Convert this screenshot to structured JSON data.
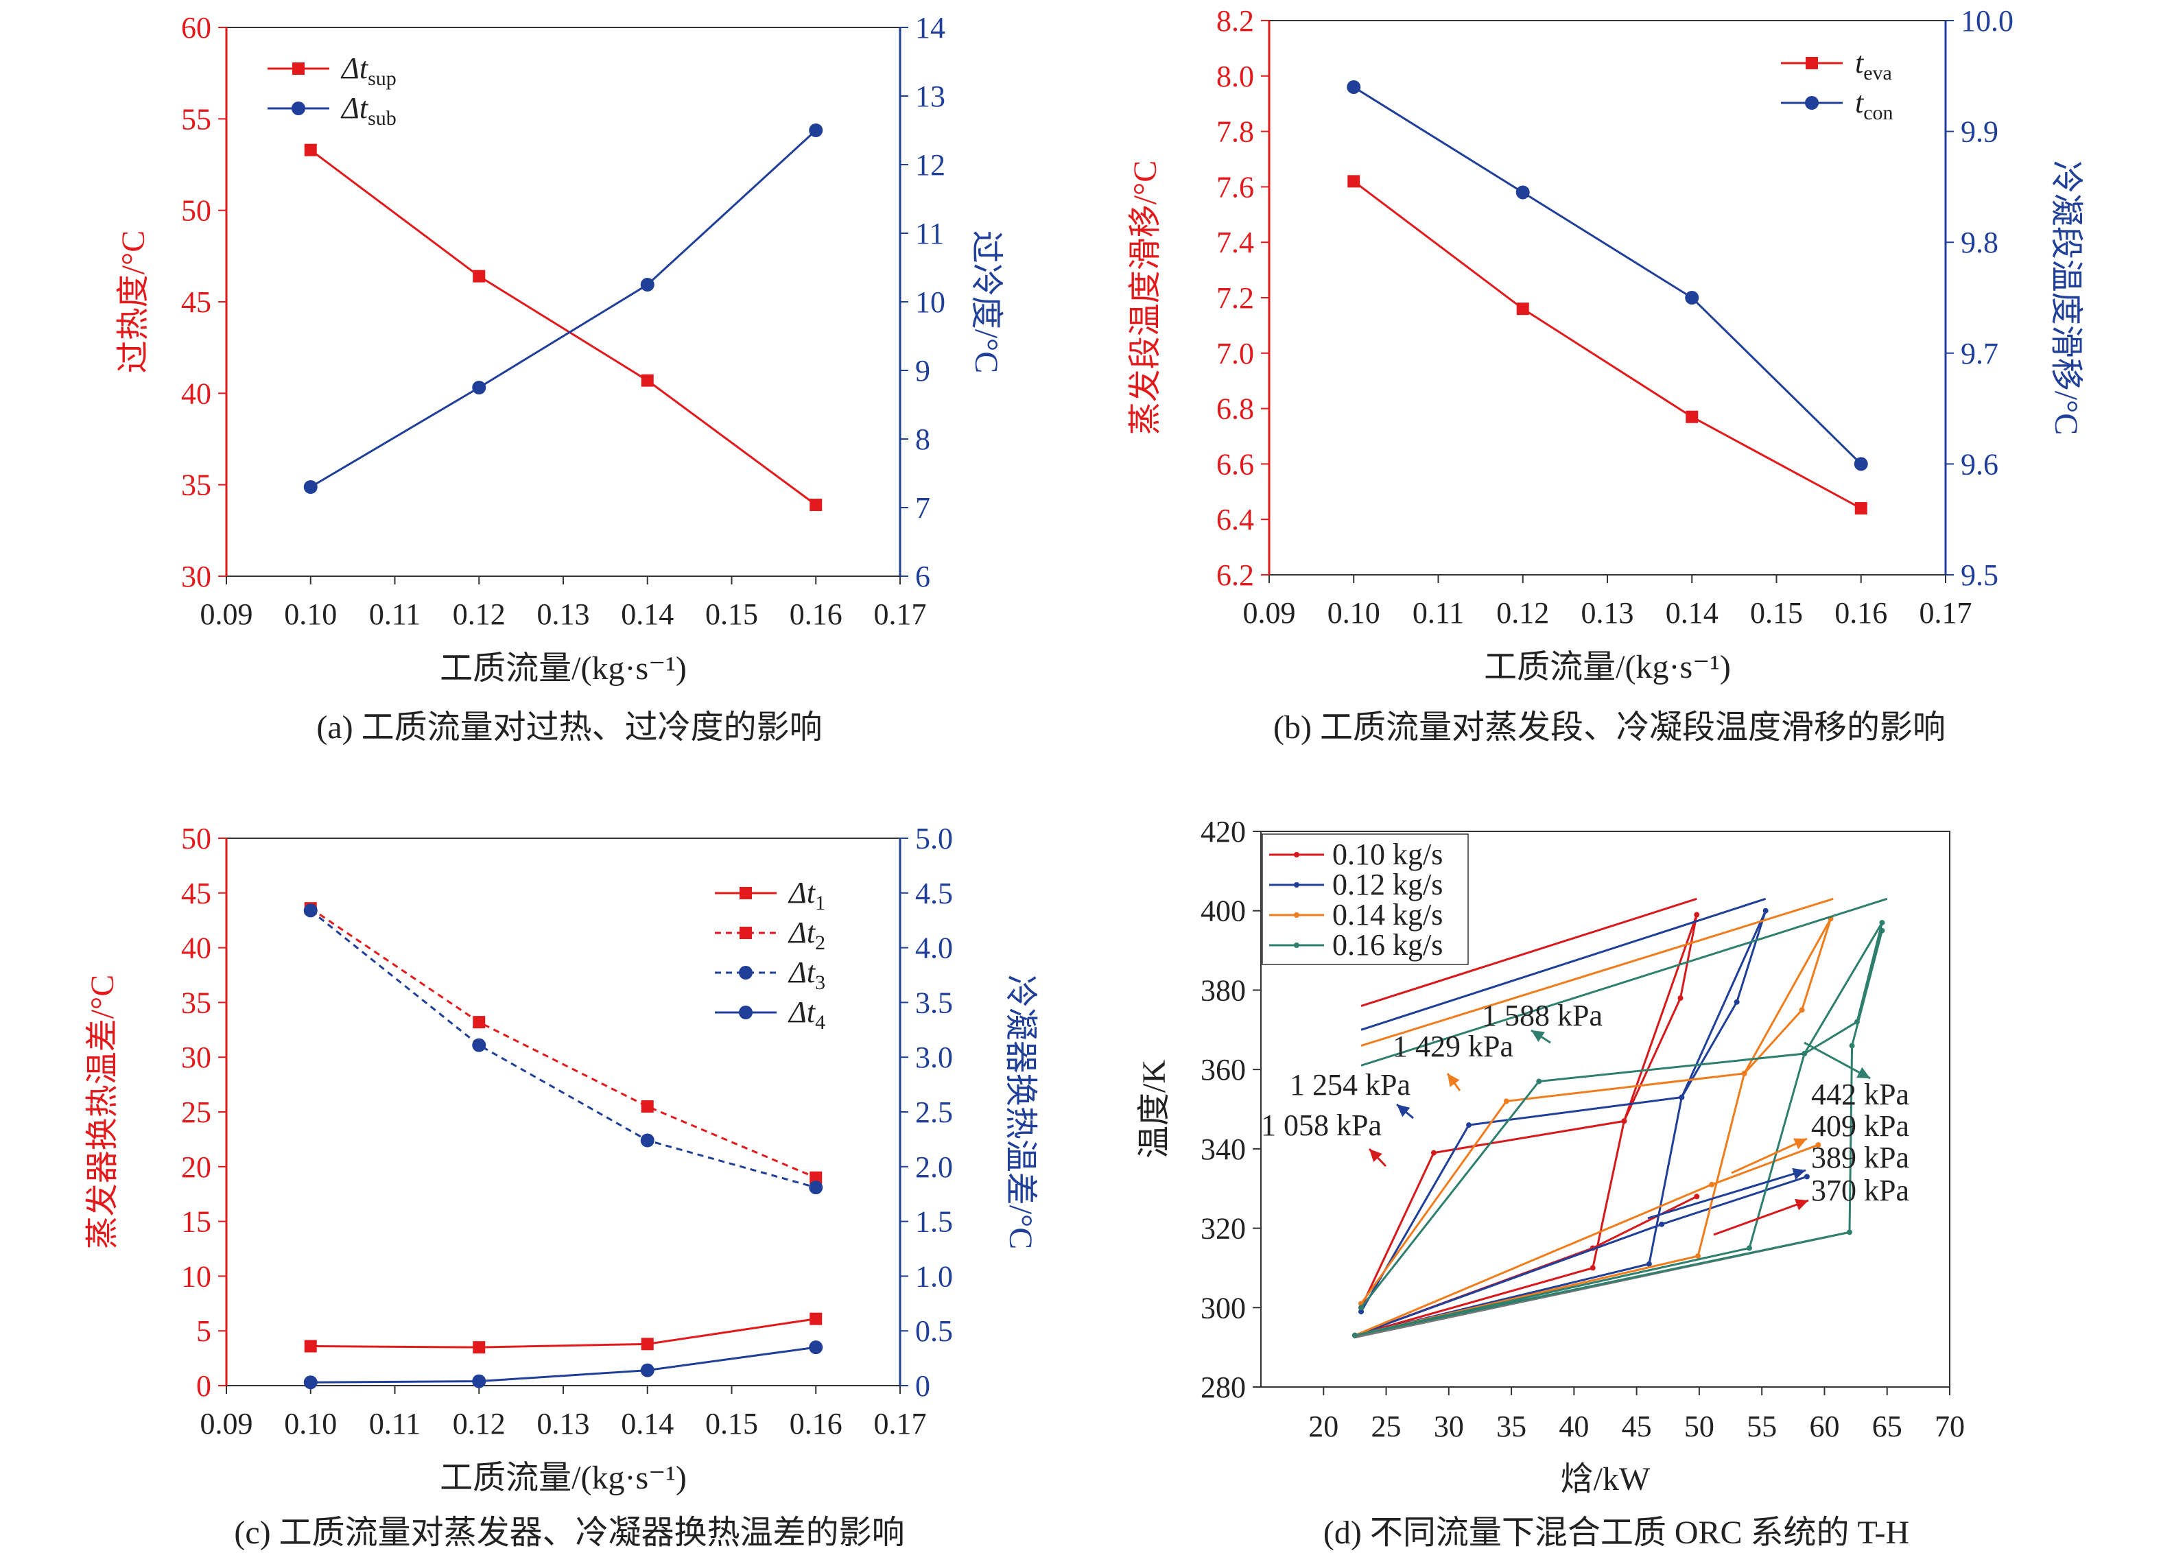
{
  "chart_data": [
    {
      "id": "a",
      "type": "line",
      "caption": "(a) 工质流量对过热、过冷度的影响",
      "xlabel": "工质流量/(kg·s⁻¹)",
      "ylabel_left": "过热度/°C",
      "ylabel_right": "过冷度/°C",
      "xlim": [
        0.09,
        0.17
      ],
      "xticks": [
        "0.09",
        "0.10",
        "0.11",
        "0.12",
        "0.13",
        "0.14",
        "0.15",
        "0.16",
        "0.17"
      ],
      "ylim_left": [
        30,
        60
      ],
      "yticks_left": [
        "30",
        "35",
        "40",
        "45",
        "50",
        "55",
        "60"
      ],
      "ylim_right": [
        6,
        14
      ],
      "yticks_right": [
        "6",
        "7",
        "8",
        "9",
        "10",
        "11",
        "12",
        "13",
        "14"
      ],
      "x": [
        0.1,
        0.12,
        0.14,
        0.16
      ],
      "series": [
        {
          "name": "Δt",
          "sub": "sup",
          "axis": "left",
          "color": "#e31a1c",
          "marker": "square",
          "dash": false,
          "values": [
            53.3,
            46.4,
            40.7,
            33.9
          ]
        },
        {
          "name": "Δt",
          "sub": "sub",
          "axis": "right",
          "color": "#1f3f99",
          "marker": "circle",
          "dash": false,
          "values": [
            7.3,
            8.75,
            10.25,
            12.5
          ]
        }
      ]
    },
    {
      "id": "b",
      "type": "line",
      "caption": "(b) 工质流量对蒸发段、冷凝段温度滑移的影响",
      "xlabel": "工质流量/(kg·s⁻¹)",
      "ylabel_left": "蒸发段温度滑移/°C",
      "ylabel_right": "冷凝段温度滑移/°C",
      "xlim": [
        0.09,
        0.17
      ],
      "xticks": [
        "0.09",
        "0.10",
        "0.11",
        "0.12",
        "0.13",
        "0.14",
        "0.15",
        "0.16",
        "0.17"
      ],
      "ylim_left": [
        6.2,
        8.2
      ],
      "yticks_left": [
        "6.2",
        "6.4",
        "6.6",
        "6.8",
        "7.0",
        "7.2",
        "7.4",
        "7.6",
        "7.8",
        "8.0",
        "8.2"
      ],
      "ylim_right": [
        9.5,
        10.0
      ],
      "yticks_right": [
        "9.5",
        "9.6",
        "9.7",
        "9.8",
        "9.9",
        "10.0"
      ],
      "x": [
        0.1,
        0.12,
        0.14,
        0.16
      ],
      "series": [
        {
          "name": "t",
          "sub": "eva",
          "axis": "left",
          "color": "#e31a1c",
          "marker": "square",
          "dash": false,
          "values": [
            7.62,
            7.16,
            6.77,
            6.44
          ]
        },
        {
          "name": "t",
          "sub": "con",
          "axis": "right",
          "color": "#1f3f99",
          "marker": "circle",
          "dash": false,
          "values": [
            9.94,
            9.845,
            9.75,
            9.6
          ]
        }
      ]
    },
    {
      "id": "c",
      "type": "line",
      "caption": "(c) 工质流量对蒸发器、冷凝器换热温差的影响",
      "xlabel": "工质流量/(kg·s⁻¹)",
      "ylabel_left": "蒸发器换热温差/°C",
      "ylabel_right": "冷凝器换热温差/°C",
      "xlim": [
        0.09,
        0.17
      ],
      "xticks": [
        "0.09",
        "0.10",
        "0.11",
        "0.12",
        "0.13",
        "0.14",
        "0.15",
        "0.16",
        "0.17"
      ],
      "ylim_left": [
        0,
        50
      ],
      "yticks_left": [
        "0",
        "5",
        "10",
        "15",
        "20",
        "25",
        "30",
        "35",
        "40",
        "45",
        "50"
      ],
      "ylim_right": [
        0,
        5.0
      ],
      "yticks_right": [
        "0",
        "0.5",
        "1.0",
        "1.5",
        "2.0",
        "2.5",
        "3.0",
        "3.5",
        "4.0",
        "4.5",
        "5.0"
      ],
      "x": [
        0.1,
        0.12,
        0.14,
        0.16
      ],
      "series": [
        {
          "name": "Δt",
          "sub": "1",
          "axis": "left",
          "color": "#e31a1c",
          "marker": "square",
          "dash": false,
          "values": [
            3.6,
            3.5,
            3.8,
            6.1
          ]
        },
        {
          "name": "Δt",
          "sub": "2",
          "axis": "left",
          "color": "#e31a1c",
          "marker": "square",
          "dash": true,
          "values": [
            43.6,
            33.2,
            25.5,
            19.0
          ]
        },
        {
          "name": "Δt",
          "sub": "3",
          "axis": "right",
          "color": "#1f3f99",
          "marker": "circle",
          "dash": true,
          "values": [
            4.34,
            3.11,
            2.24,
            1.81
          ]
        },
        {
          "name": "Δt",
          "sub": "4",
          "axis": "right",
          "color": "#1f3f99",
          "marker": "circle",
          "dash": false,
          "values": [
            0.03,
            0.04,
            0.14,
            0.35
          ]
        }
      ]
    },
    {
      "id": "d",
      "type": "line",
      "caption": "(d) 不同流量下混合工质 ORC 系统的 T-H",
      "xlabel": "焓/kW",
      "ylabel": "温度/K",
      "xlim": [
        15,
        70
      ],
      "xticks": [
        "20",
        "25",
        "30",
        "35",
        "40",
        "45",
        "50",
        "55",
        "60",
        "65",
        "70"
      ],
      "ylim": [
        280,
        420
      ],
      "yticks": [
        "280",
        "300",
        "320",
        "340",
        "360",
        "380",
        "400",
        "420"
      ],
      "series": [
        {
          "name": "0.10 kg/s",
          "color": "#d7191c",
          "heat": [
            [
              23,
              376
            ],
            [
              49.8,
              403
            ]
          ],
          "cycle": [
            [
              23,
              300
            ],
            [
              28.8,
              339
            ],
            [
              44,
              347
            ],
            [
              48.5,
              378
            ],
            [
              49.8,
              399
            ],
            [
              44,
              347
            ],
            [
              41.5,
              310
            ],
            [
              22.5,
              293
            ],
            [
              41.5,
              315
            ],
            [
              49.8,
              328
            ]
          ],
          "pressures": [
            "1 058 kPa",
            "370 kPa"
          ]
        },
        {
          "name": "0.12 kg/s",
          "color": "#1f3f99",
          "heat": [
            [
              23,
              370
            ],
            [
              55.3,
              403
            ]
          ],
          "cycle": [
            [
              23,
              299
            ],
            [
              31.6,
              346
            ],
            [
              48.6,
              353
            ],
            [
              53,
              377
            ],
            [
              55.3,
              400
            ],
            [
              48.6,
              353
            ],
            [
              46,
              311
            ],
            [
              22.5,
              293
            ],
            [
              47,
              321
            ],
            [
              58.6,
              333
            ]
          ],
          "pressures": [
            "1 254 kPa",
            "389 kPa"
          ]
        },
        {
          "name": "0.14 kg/s",
          "color": "#f07d1d",
          "heat": [
            [
              23,
              366
            ],
            [
              60.7,
              403
            ]
          ],
          "cycle": [
            [
              23,
              301
            ],
            [
              34.6,
              352
            ],
            [
              53.6,
              359
            ],
            [
              58.2,
              375
            ],
            [
              60.5,
              398
            ],
            [
              53.6,
              359
            ],
            [
              49.9,
              313
            ],
            [
              22.5,
              293
            ],
            [
              51,
              331
            ],
            [
              59.5,
              341
            ]
          ],
          "pressures": [
            "1 429 kPa",
            "409 kPa"
          ]
        },
        {
          "name": "0.16 kg/s",
          "color": "#2e7f6e",
          "heat": [
            [
              23,
              361
            ],
            [
              65,
              403
            ]
          ],
          "cycle": [
            [
              23,
              300
            ],
            [
              37.2,
              357
            ],
            [
              58.4,
              364
            ],
            [
              62.6,
              372
            ],
            [
              64.6,
              397
            ],
            [
              58.4,
              364
            ],
            [
              54,
              315
            ],
            [
              22.5,
              293
            ],
            [
              62,
              319
            ],
            [
              62.2,
              366
            ],
            [
              64.6,
              395
            ]
          ],
          "pressures": [
            "1 588 kPa",
            "442 kPa"
          ]
        }
      ],
      "labels": [
        {
          "text": "1 588 kPa",
          "color": "#2e7f6e"
        },
        {
          "text": "1 429 kPa",
          "color": "#f07d1d"
        },
        {
          "text": "1 254 kPa",
          "color": "#1f3f99"
        },
        {
          "text": "1 058 kPa",
          "color": "#d7191c"
        },
        {
          "text": "442 kPa",
          "color": "#2e7f6e"
        },
        {
          "text": "409 kPa",
          "color": "#f07d1d"
        },
        {
          "text": "389 kPa",
          "color": "#1f3f99"
        },
        {
          "text": "370 kPa",
          "color": "#d7191c"
        }
      ]
    }
  ]
}
